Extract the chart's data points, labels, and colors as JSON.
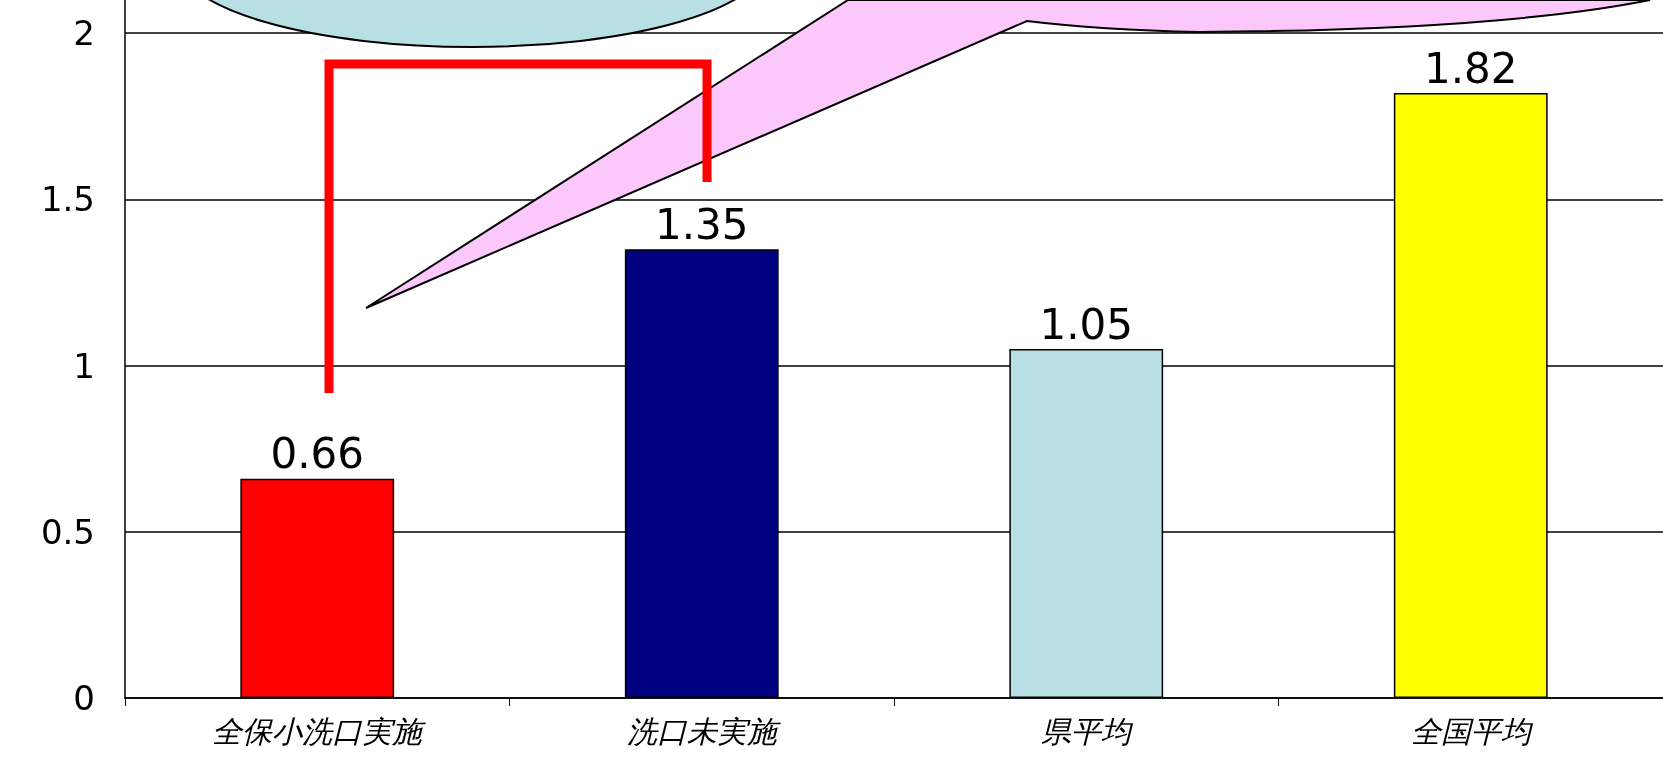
{
  "chart_data": {
    "type": "bar",
    "categories": [
      "全保小洗口実施",
      "洗口未実施",
      "県平均",
      "全国平均"
    ],
    "values": [
      0.66,
      1.35,
      1.05,
      1.82
    ],
    "colors": [
      "#ff0000",
      "#000080",
      "#b8e0e4",
      "#ffff00"
    ],
    "ylim": [
      0,
      2.1
    ],
    "yticks": [
      0,
      0.5,
      1,
      1.5,
      2
    ],
    "grid": "y",
    "data_labels": true
  }
}
